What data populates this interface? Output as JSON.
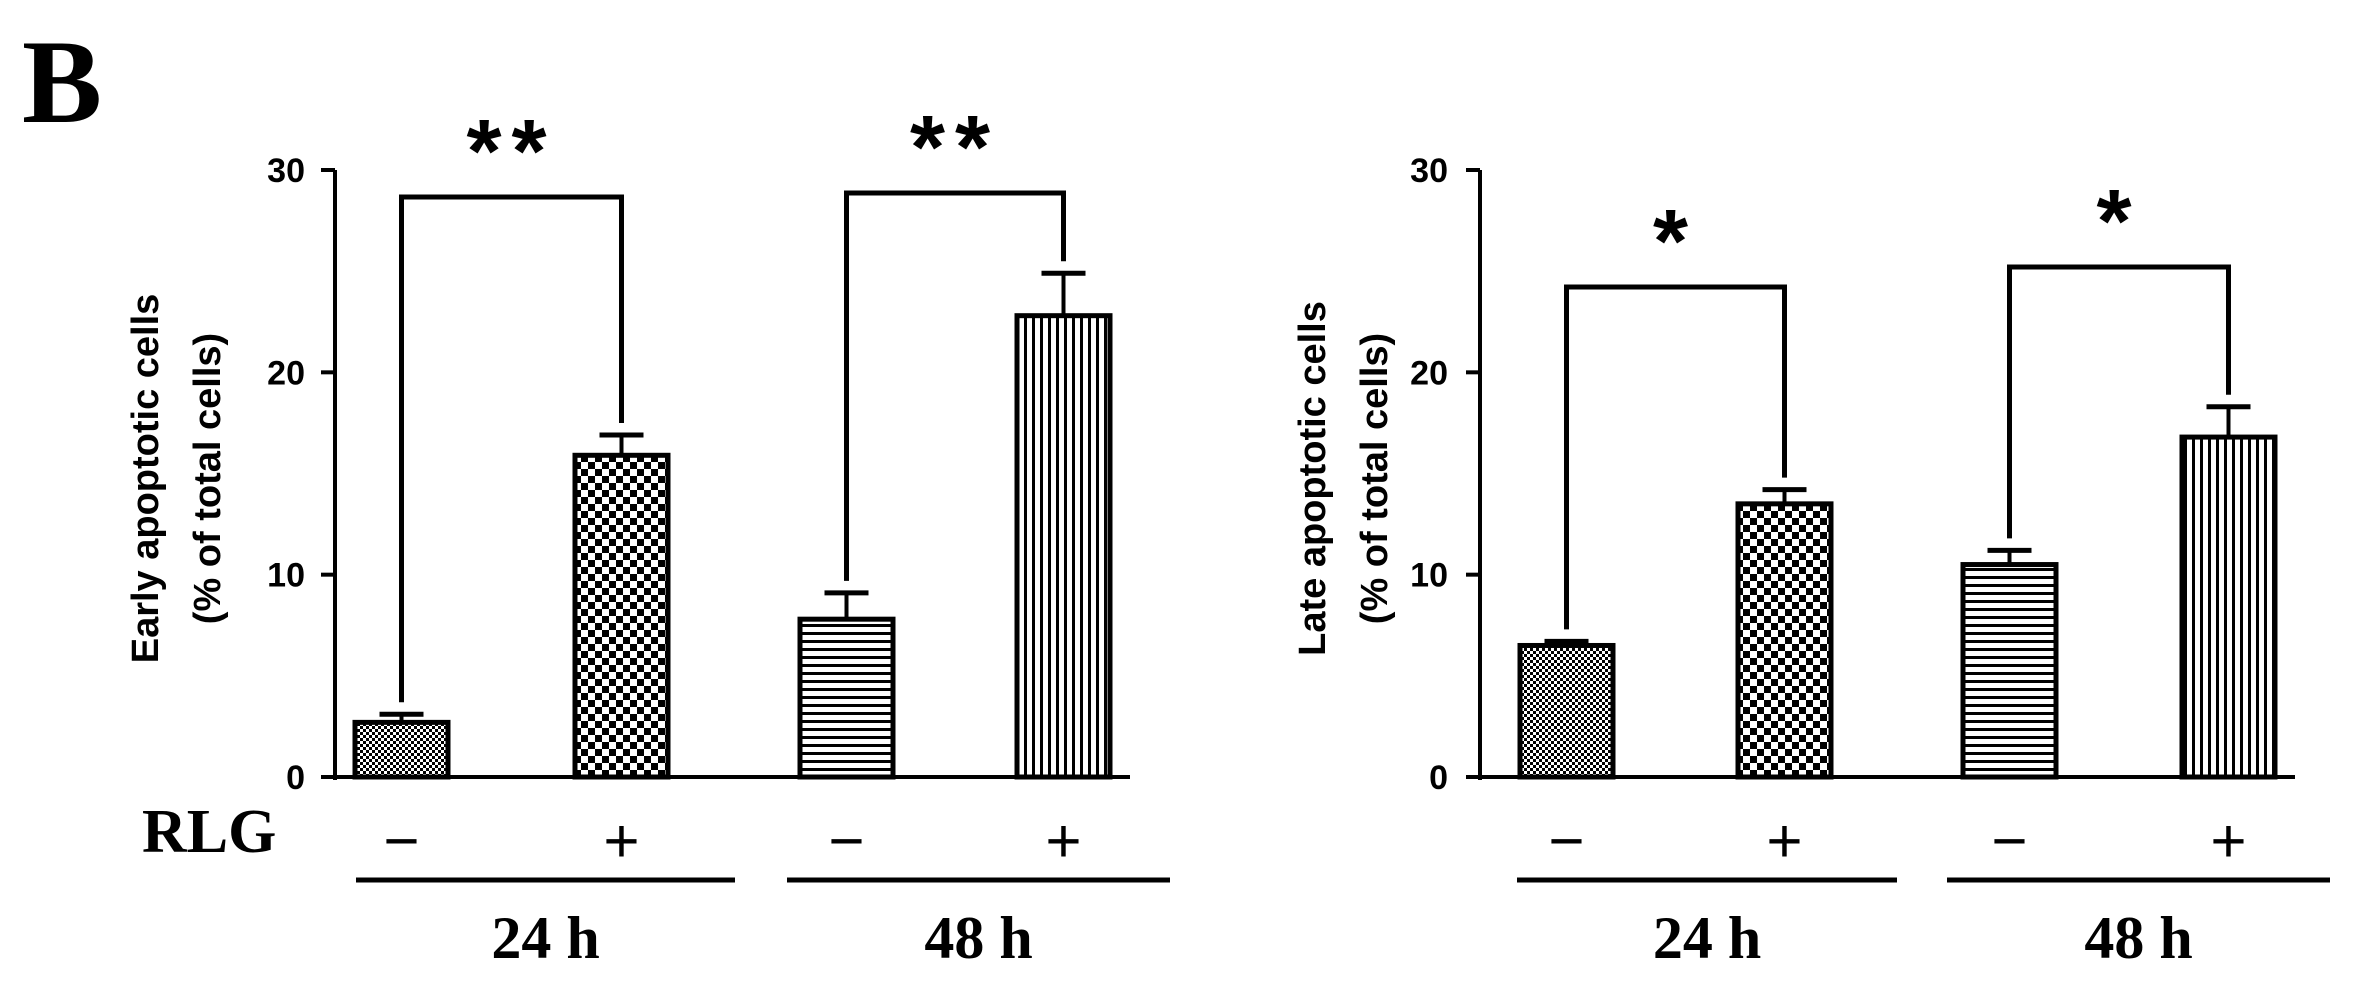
{
  "panel_label": "B",
  "treatment_label": "RLG",
  "chart_data": [
    {
      "type": "bar",
      "ylabel": [
        "Early apoptotic cells",
        "(% of total cells)"
      ],
      "ylim": [
        0,
        30
      ],
      "yticks": [
        "0",
        "10",
        "20",
        "30"
      ],
      "categories": [
        "24 h −",
        "24 h +",
        "48 h −",
        "48 h +"
      ],
      "values": [
        2.7,
        15.9,
        7.8,
        22.8
      ],
      "errors": [
        0.4,
        1.0,
        1.3,
        2.1
      ],
      "rlg": [
        "−",
        "+",
        "−",
        "+"
      ],
      "groups": [
        {
          "label": "24 h",
          "bars": [
            0,
            1
          ]
        },
        {
          "label": "48 h",
          "bars": [
            2,
            3
          ]
        }
      ],
      "patterns": [
        "fine-dots",
        "checker",
        "horizontal",
        "vertical"
      ],
      "significance": [
        {
          "bars": [
            0,
            1
          ],
          "label": "**"
        },
        {
          "bars": [
            2,
            3
          ],
          "label": "**"
        }
      ]
    },
    {
      "type": "bar",
      "ylabel": [
        "Late apoptotic cells",
        "(% of total cells)"
      ],
      "ylim": [
        0,
        30
      ],
      "yticks": [
        "0",
        "10",
        "20",
        "30"
      ],
      "categories": [
        "24 h −",
        "24 h +",
        "48 h −",
        "48 h +"
      ],
      "values": [
        6.5,
        13.5,
        10.5,
        16.8
      ],
      "errors": [
        0.2,
        0.7,
        0.7,
        1.5
      ],
      "rlg": [
        "−",
        "+",
        "−",
        "+"
      ],
      "groups": [
        {
          "label": "24 h",
          "bars": [
            0,
            1
          ]
        },
        {
          "label": "48 h",
          "bars": [
            2,
            3
          ]
        }
      ],
      "patterns": [
        "fine-dots",
        "checker",
        "horizontal",
        "vertical"
      ],
      "significance": [
        {
          "bars": [
            0,
            1
          ],
          "label": "*"
        },
        {
          "bars": [
            2,
            3
          ],
          "label": "*"
        }
      ]
    }
  ]
}
